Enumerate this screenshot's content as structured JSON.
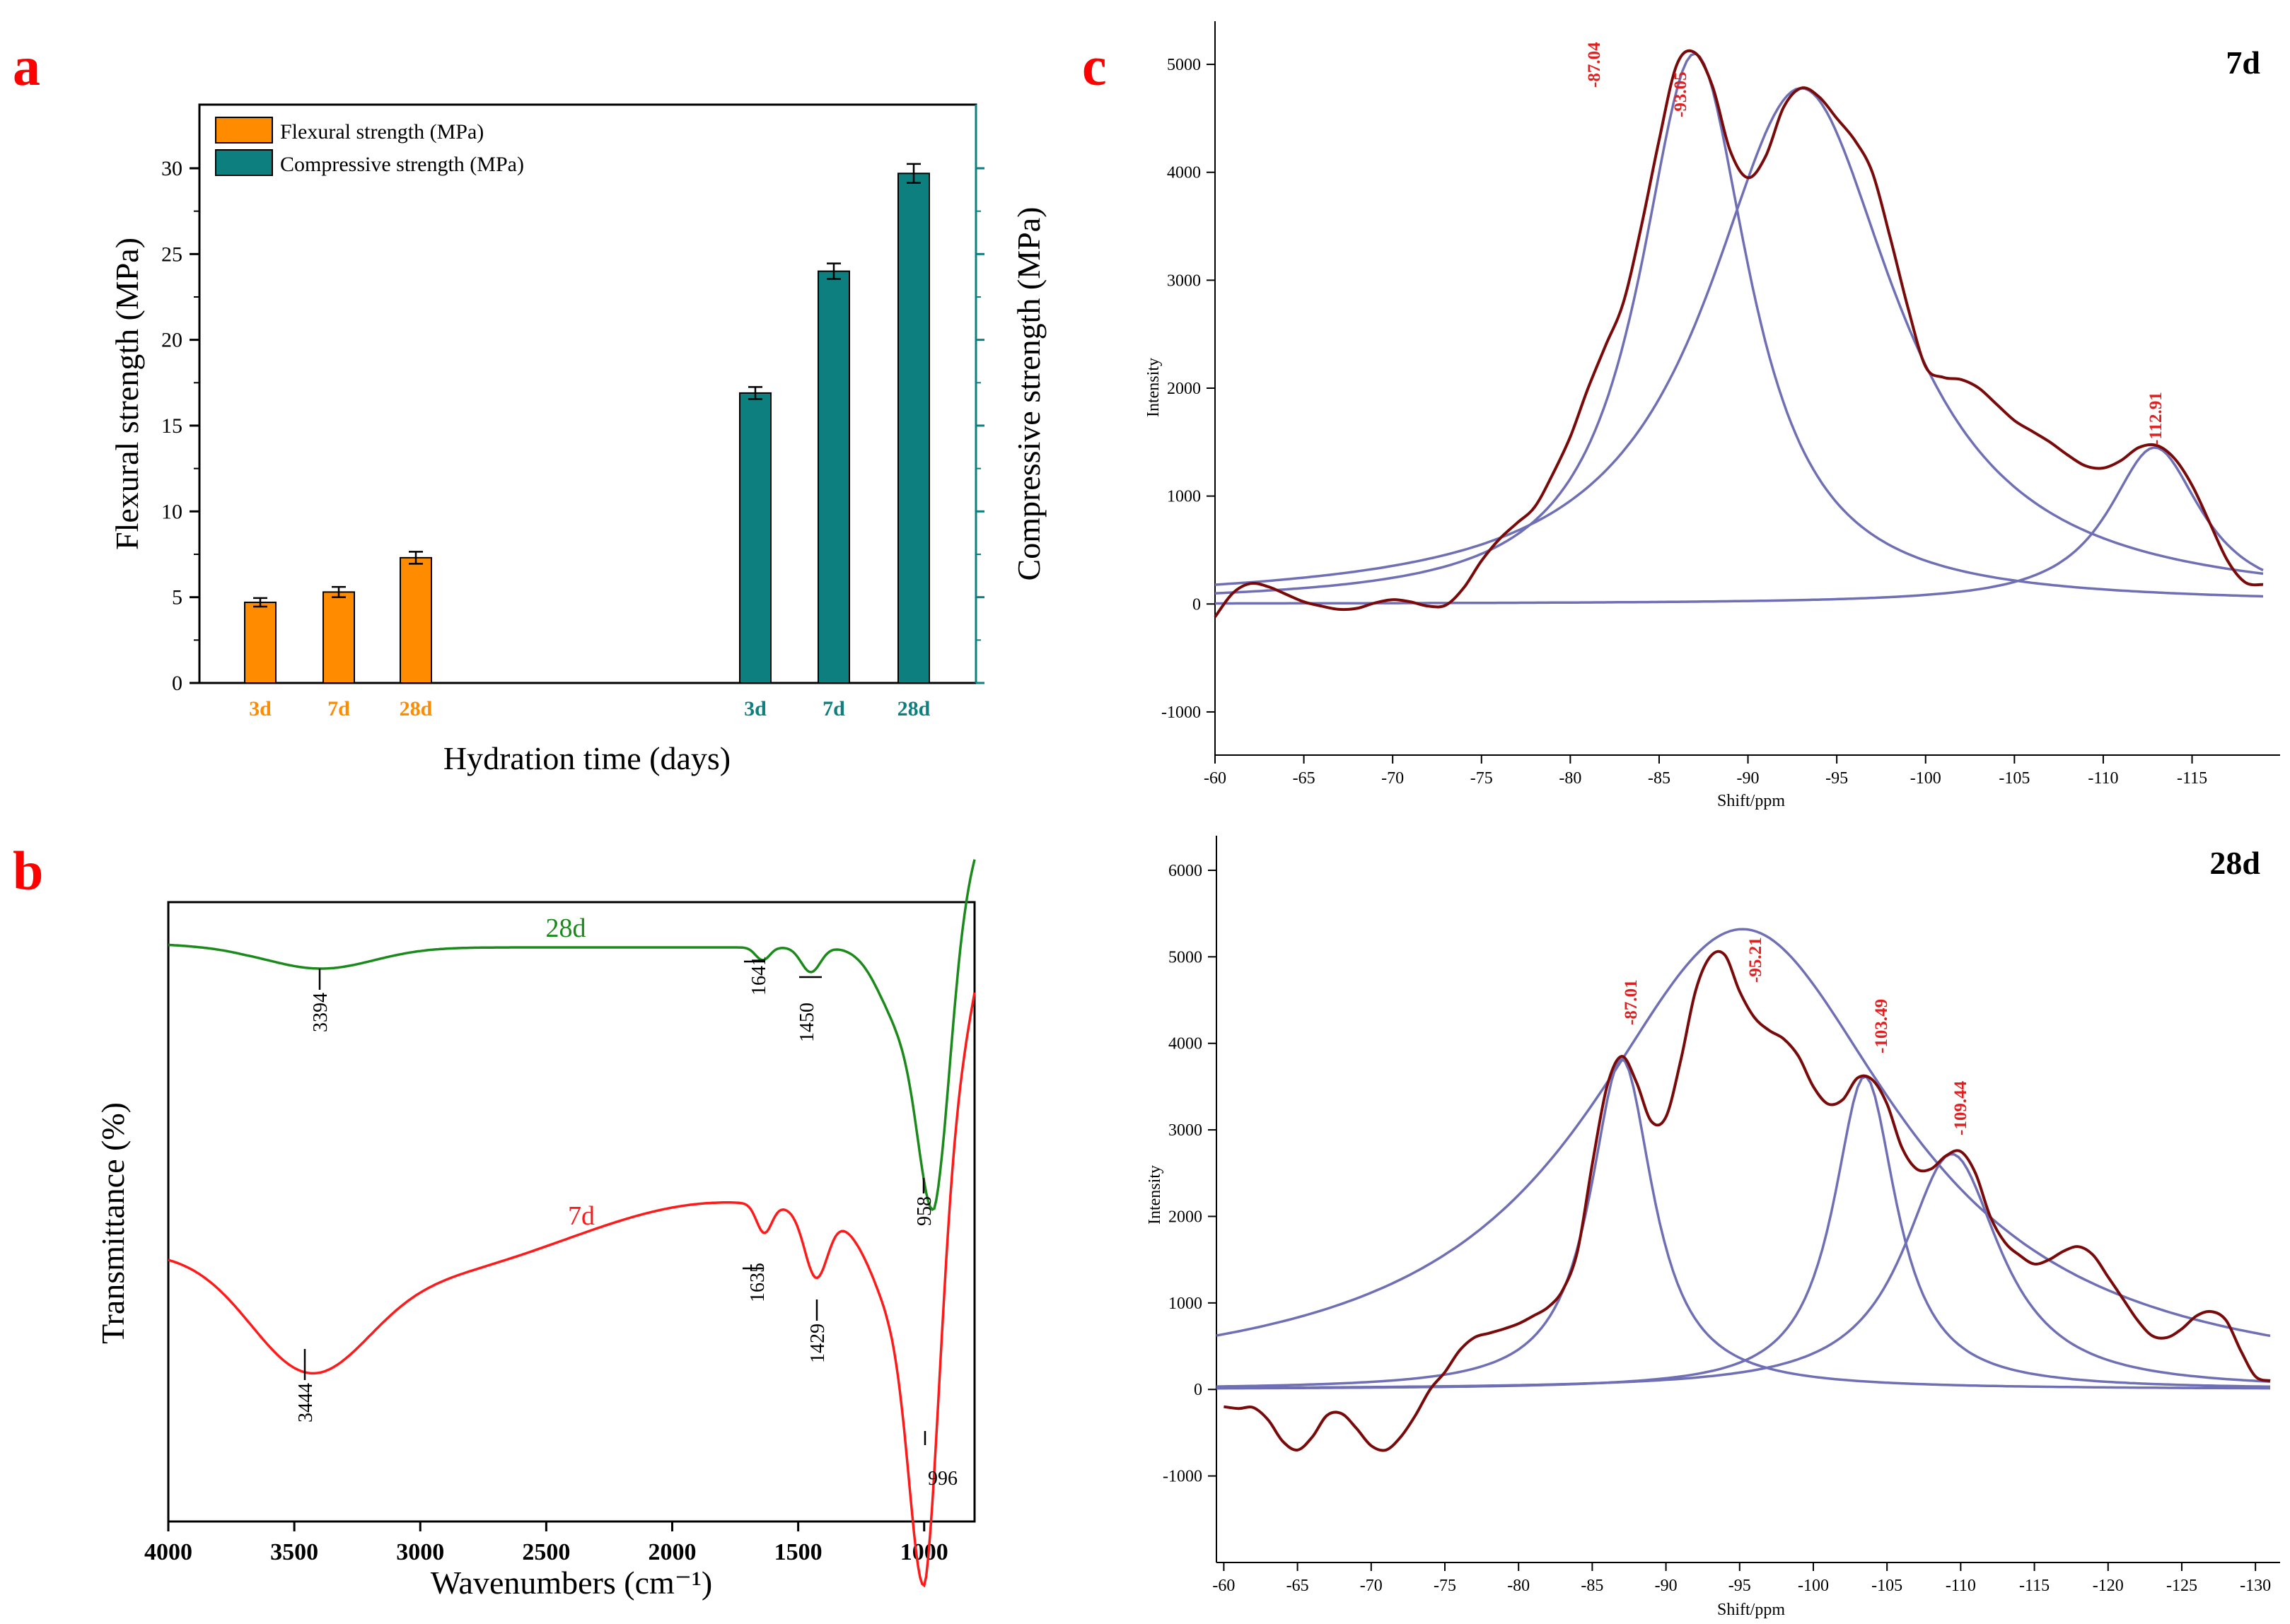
{
  "panels": {
    "a": "a",
    "b": "b",
    "c": "c"
  },
  "colors": {
    "flexural": "#ff8c00",
    "compressive": "#0e7f7f",
    "ir_28d": "#1a8a1a",
    "ir_7d": "#ff1a1a",
    "nmr_exp": "#7a0a0a",
    "nmr_fit": "#6f6fb5",
    "nmr_label": "#e02020",
    "panel_letter": "#ff0000"
  },
  "chart_data": [
    {
      "type": "bar",
      "panel": "a",
      "xlabel": "Hydration time (days)",
      "ylabel": "Flexural strength (MPa)",
      "ylabel_right": "Compressive strength (MPa)",
      "ylim": [
        0,
        30
      ],
      "yticks": [
        "0",
        "5",
        "10",
        "15",
        "20",
        "25",
        "30"
      ],
      "series": [
        {
          "name": "Flexural strength (MPa)",
          "categories": [
            "3d",
            "7d",
            "28d"
          ],
          "values": [
            4.7,
            5.3,
            7.3
          ],
          "errors": [
            0.25,
            0.3,
            0.35
          ]
        },
        {
          "name": "Compressive strength (MPa)",
          "categories": [
            "3d",
            "7d",
            "28d"
          ],
          "values": [
            16.9,
            24.0,
            29.7
          ],
          "errors": [
            0.35,
            0.45,
            0.55
          ]
        }
      ]
    },
    {
      "type": "line",
      "panel": "b",
      "xlabel": "Wavenumbers (cm⁻¹)",
      "ylabel": "Transmittance (%)",
      "xlim": [
        4000,
        800
      ],
      "xticks": [
        "4000",
        "3500",
        "3000",
        "2500",
        "2000",
        "1500",
        "1000"
      ],
      "series": [
        {
          "name": "28d",
          "peaks": [
            "3394",
            "1641",
            "1450",
            "958"
          ]
        },
        {
          "name": "7d",
          "peaks": [
            "3444",
            "1635",
            "1429",
            "996"
          ]
        }
      ]
    },
    {
      "type": "line",
      "panel": "c",
      "title": "7d",
      "xlabel": "Shift/ppm",
      "ylabel": "Intensity",
      "xlim": [
        -60,
        -119
      ],
      "ylim": [
        -1400,
        5400
      ],
      "xticks": [
        "-60",
        "-65",
        "-70",
        "-75",
        "-80",
        "-85",
        "-90",
        "-95",
        "-100",
        "-105",
        "-110",
        "-115"
      ],
      "yticks": [
        "-1000",
        "0",
        "1000",
        "2000",
        "3000",
        "4000",
        "5000"
      ],
      "peak_labels": [
        "-87.04",
        "-93.05",
        "-112.91"
      ],
      "fit_peaks": [
        {
          "center": -87.0,
          "amplitude": 5100,
          "width": 3.8
        },
        {
          "center": -93.0,
          "amplitude": 4780,
          "width": 6.5
        },
        {
          "center": -112.9,
          "amplitude": 1450,
          "width": 3.2
        }
      ],
      "experimental": [
        [
          -60,
          -120
        ],
        [
          -61,
          100
        ],
        [
          -62,
          190
        ],
        [
          -63,
          160
        ],
        [
          -64,
          90
        ],
        [
          -65,
          20
        ],
        [
          -66,
          -20
        ],
        [
          -67,
          -50
        ],
        [
          -68,
          -40
        ],
        [
          -69,
          10
        ],
        [
          -70,
          40
        ],
        [
          -71,
          20
        ],
        [
          -72,
          -20
        ],
        [
          -73,
          -10
        ],
        [
          -74,
          150
        ],
        [
          -75,
          400
        ],
        [
          -76,
          600
        ],
        [
          -77,
          750
        ],
        [
          -78,
          900
        ],
        [
          -79,
          1200
        ],
        [
          -80,
          1550
        ],
        [
          -81,
          2000
        ],
        [
          -82,
          2400
        ],
        [
          -83,
          2800
        ],
        [
          -84,
          3500
        ],
        [
          -85,
          4300
        ],
        [
          -86,
          5000
        ],
        [
          -87,
          5110
        ],
        [
          -88,
          4800
        ],
        [
          -89,
          4200
        ],
        [
          -90,
          3950
        ],
        [
          -91,
          4150
        ],
        [
          -92,
          4600
        ],
        [
          -93,
          4780
        ],
        [
          -94,
          4700
        ],
        [
          -95,
          4500
        ],
        [
          -96,
          4300
        ],
        [
          -97,
          4000
        ],
        [
          -98,
          3400
        ],
        [
          -99,
          2750
        ],
        [
          -100,
          2200
        ],
        [
          -101,
          2100
        ],
        [
          -102,
          2080
        ],
        [
          -103,
          2000
        ],
        [
          -104,
          1850
        ],
        [
          -105,
          1700
        ],
        [
          -106,
          1600
        ],
        [
          -107,
          1500
        ],
        [
          -108,
          1380
        ],
        [
          -109,
          1280
        ],
        [
          -110,
          1260
        ],
        [
          -111,
          1330
        ],
        [
          -112,
          1450
        ],
        [
          -113,
          1470
        ],
        [
          -114,
          1350
        ],
        [
          -115,
          1100
        ],
        [
          -116,
          750
        ],
        [
          -117,
          400
        ],
        [
          -118,
          200
        ],
        [
          -119,
          180
        ]
      ]
    },
    {
      "type": "line",
      "panel": "c",
      "title": "28d",
      "xlabel": "Shift/ppm",
      "ylabel": "Intensity",
      "xlim": [
        -59.5,
        -131
      ],
      "ylim": [
        -2000,
        6400
      ],
      "xticks": [
        "-60",
        "-65",
        "-70",
        "-75",
        "-80",
        "-85",
        "-90",
        "-95",
        "-100",
        "-105",
        "-110",
        "-115",
        "-120",
        "-125",
        "-130"
      ],
      "yticks": [
        "-1000",
        "0",
        "1000",
        "2000",
        "3000",
        "4000",
        "5000",
        "6000"
      ],
      "peak_labels": [
        "-87.01",
        "-95.21",
        "-103.49",
        "-109.44"
      ],
      "fit_peaks": [
        {
          "center": -87.0,
          "amplitude": 3820,
          "width": 2.6
        },
        {
          "center": -95.2,
          "amplitude": 5320,
          "width": 13
        },
        {
          "center": -103.5,
          "amplitude": 3620,
          "width": 2.6
        },
        {
          "center": -109.4,
          "amplitude": 2720,
          "width": 4
        }
      ],
      "experimental": [
        [
          -60,
          -200
        ],
        [
          -61,
          -220
        ],
        [
          -62,
          -210
        ],
        [
          -63,
          -350
        ],
        [
          -64,
          -600
        ],
        [
          -65,
          -700
        ],
        [
          -66,
          -550
        ],
        [
          -67,
          -300
        ],
        [
          -68,
          -280
        ],
        [
          -69,
          -450
        ],
        [
          -70,
          -650
        ],
        [
          -71,
          -700
        ],
        [
          -72,
          -550
        ],
        [
          -73,
          -300
        ],
        [
          -74,
          0
        ],
        [
          -75,
          200
        ],
        [
          -76,
          450
        ],
        [
          -77,
          600
        ],
        [
          -78,
          650
        ],
        [
          -79,
          700
        ],
        [
          -80,
          760
        ],
        [
          -81,
          850
        ],
        [
          -82,
          950
        ],
        [
          -83,
          1150
        ],
        [
          -84,
          1600
        ],
        [
          -85,
          2600
        ],
        [
          -86,
          3500
        ],
        [
          -87,
          3850
        ],
        [
          -88,
          3550
        ],
        [
          -89,
          3100
        ],
        [
          -90,
          3150
        ],
        [
          -91,
          3800
        ],
        [
          -92,
          4600
        ],
        [
          -93,
          5000
        ],
        [
          -94,
          5020
        ],
        [
          -95,
          4600
        ],
        [
          -96,
          4300
        ],
        [
          -97,
          4150
        ],
        [
          -98,
          4050
        ],
        [
          -99,
          3850
        ],
        [
          -100,
          3500
        ],
        [
          -101,
          3300
        ],
        [
          -102,
          3350
        ],
        [
          -103,
          3600
        ],
        [
          -104,
          3580
        ],
        [
          -105,
          3300
        ],
        [
          -106,
          2800
        ],
        [
          -107,
          2550
        ],
        [
          -108,
          2550
        ],
        [
          -109,
          2700
        ],
        [
          -110,
          2750
        ],
        [
          -111,
          2500
        ],
        [
          -112,
          2000
        ],
        [
          -113,
          1700
        ],
        [
          -114,
          1550
        ],
        [
          -115,
          1450
        ],
        [
          -116,
          1500
        ],
        [
          -117,
          1600
        ],
        [
          -118,
          1650
        ],
        [
          -119,
          1550
        ],
        [
          -120,
          1300
        ],
        [
          -121,
          1050
        ],
        [
          -122,
          800
        ],
        [
          -123,
          620
        ],
        [
          -124,
          600
        ],
        [
          -125,
          700
        ],
        [
          -126,
          850
        ],
        [
          -127,
          900
        ],
        [
          -128,
          800
        ],
        [
          -129,
          450
        ],
        [
          -130,
          150
        ],
        [
          -131,
          100
        ]
      ]
    }
  ]
}
